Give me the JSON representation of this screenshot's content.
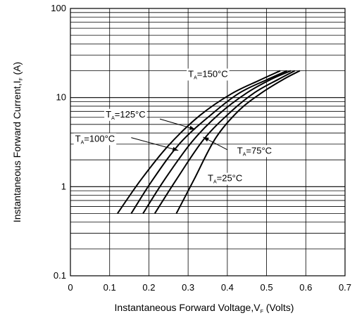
{
  "chart_data": {
    "type": "line",
    "title": "",
    "xlabel": "Instantaneous Forward Voltage,V",
    "xlabel_sub": "F",
    "xlabel_tail": " (Volts)",
    "ylabel": "Instantaneous Forward Current,I",
    "ylabel_sub": "F",
    "ylabel_tail": " (A)",
    "xlim": [
      0,
      0.7
    ],
    "ylim": [
      0.1,
      100
    ],
    "yscale": "log",
    "grid": true,
    "x_ticks": [
      0,
      0.1,
      0.2,
      0.3,
      0.4,
      0.5,
      0.6,
      0.7
    ],
    "x_tick_labels": [
      "0",
      "0.1",
      "0.2",
      "0.3",
      "0.4",
      "0.5",
      "0.6",
      "0.7"
    ],
    "y_ticks": [
      0.1,
      1,
      10,
      100
    ],
    "y_tick_labels": [
      "0.1",
      "1",
      "10",
      "100"
    ],
    "series": [
      {
        "name": "T_A=150°C",
        "label_main": "T",
        "label_sub": "A",
        "label_tail": "=150°C",
        "x": [
          0.12,
          0.18,
          0.25,
          0.33,
          0.41,
          0.48,
          0.535
        ],
        "y": [
          0.5,
          1.2,
          2.9,
          6.3,
          11,
          15.5,
          20
        ]
      },
      {
        "name": "T_A=125°C",
        "label_main": "T",
        "label_sub": "A",
        "label_tail": "=125°C",
        "x": [
          0.155,
          0.21,
          0.28,
          0.36,
          0.43,
          0.5,
          0.552
        ],
        "y": [
          0.5,
          1.2,
          3.1,
          6.5,
          11.2,
          15.8,
          20
        ]
      },
      {
        "name": "T_A=100°C",
        "label_main": "T",
        "label_sub": "A",
        "label_tail": "=100°C",
        "x": [
          0.185,
          0.24,
          0.31,
          0.38,
          0.45,
          0.51,
          0.562
        ],
        "y": [
          0.5,
          1.2,
          3.2,
          6.6,
          11.3,
          15.9,
          20
        ]
      },
      {
        "name": "T_A=75°C",
        "label_main": "T",
        "label_sub": "A",
        "label_tail": "=75°C",
        "x": [
          0.215,
          0.27,
          0.34,
          0.41,
          0.47,
          0.53,
          0.572
        ],
        "y": [
          0.5,
          1.2,
          3.4,
          7.0,
          11.4,
          16,
          20
        ]
      },
      {
        "name": "T_A=25°C",
        "label_main": "T",
        "label_sub": "A",
        "label_tail": "=25°C",
        "x": [
          0.27,
          0.315,
          0.37,
          0.43,
          0.49,
          0.545,
          0.585
        ],
        "y": [
          0.5,
          1.2,
          3.5,
          7.2,
          11.5,
          16.2,
          20
        ]
      }
    ]
  }
}
